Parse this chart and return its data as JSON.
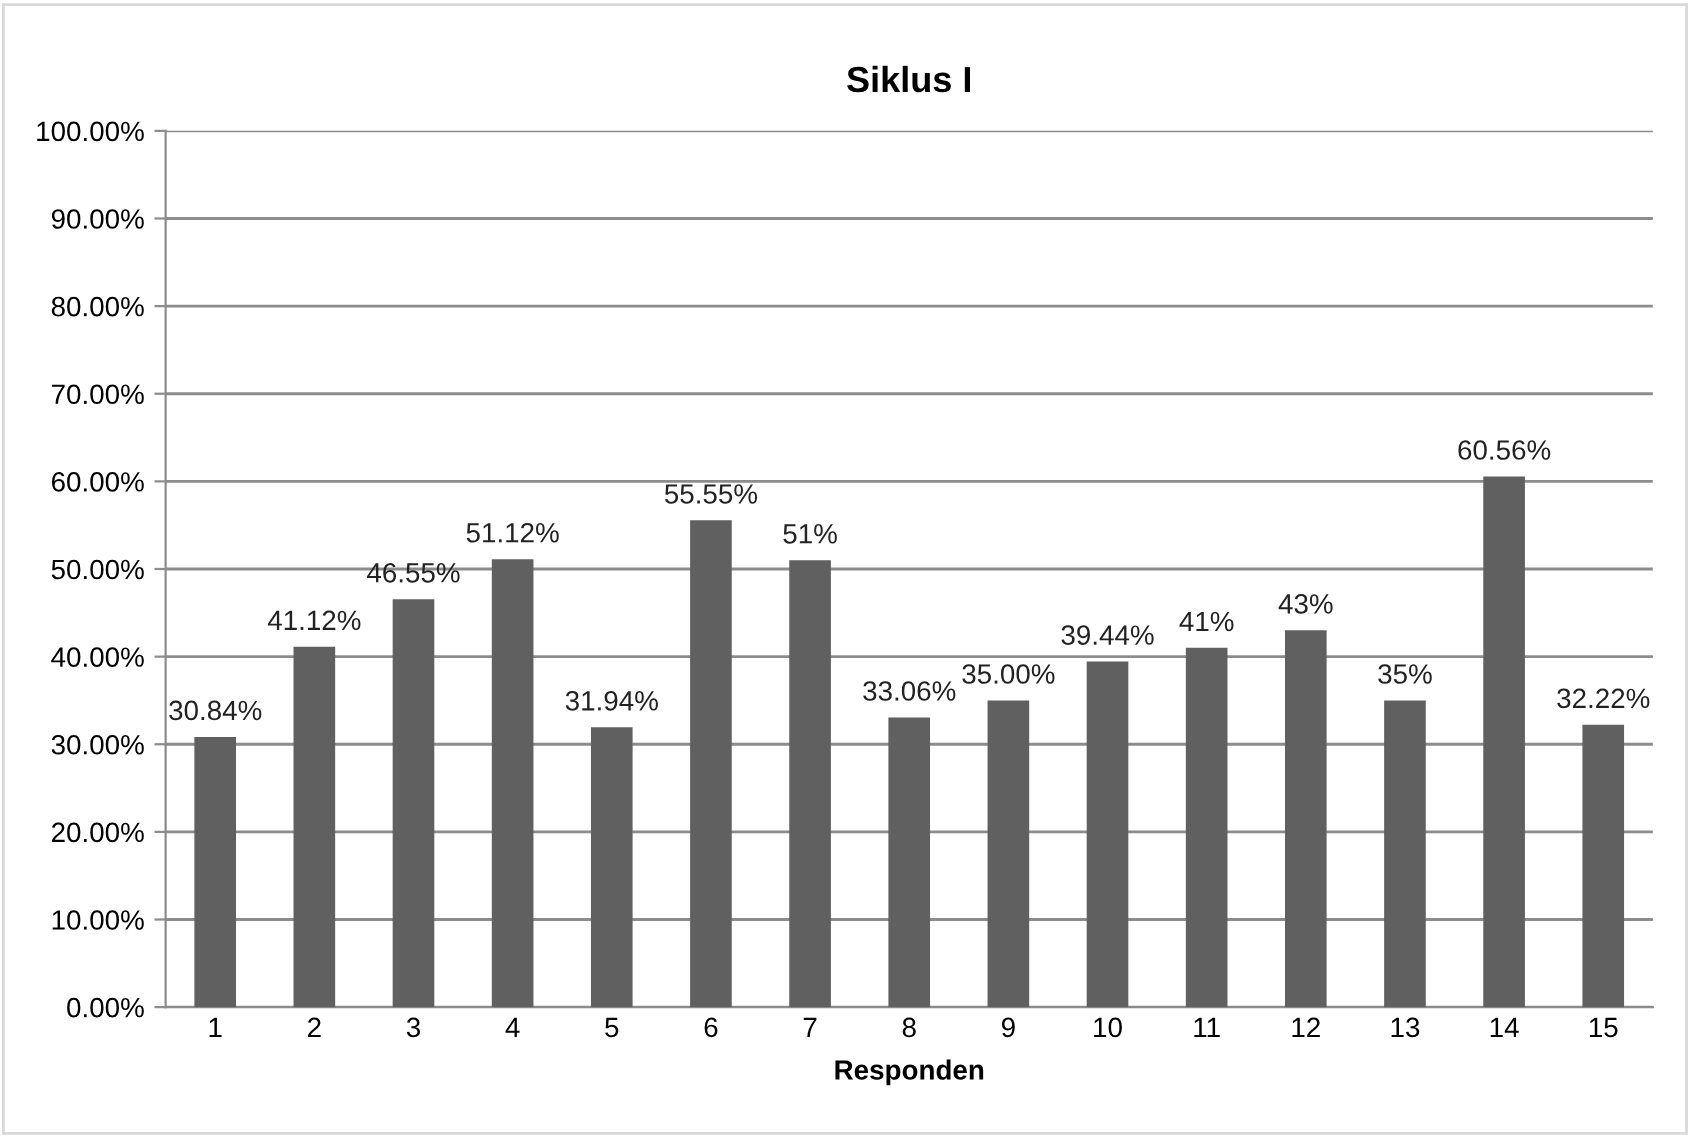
{
  "chart_data": {
    "type": "bar",
    "title": "Siklus I",
    "xlabel": "Responden",
    "categories": [
      "1",
      "2",
      "3",
      "4",
      "5",
      "6",
      "7",
      "8",
      "9",
      "10",
      "11",
      "12",
      "13",
      "14",
      "15"
    ],
    "values": [
      30.84,
      41.12,
      46.55,
      51.12,
      31.94,
      55.55,
      51,
      33.06,
      35.0,
      39.44,
      41,
      43,
      35,
      60.56,
      32.22
    ],
    "value_labels": [
      "30.84%",
      "41.12%",
      "46.55%",
      "51.12%",
      "31.94%",
      "55.55%",
      "51%",
      "33.06%",
      "35.00%",
      "39.44%",
      "41%",
      "43%",
      "35%",
      "60.56%",
      "32.22%"
    ],
    "color": "#606060",
    "ylim": [
      0,
      100
    ],
    "yticks": [
      {
        "value": 0,
        "label": "0.00%"
      },
      {
        "value": 10,
        "label": "10.00%"
      },
      {
        "value": 20,
        "label": "20.00%"
      },
      {
        "value": 30,
        "label": "30.00%"
      },
      {
        "value": 40,
        "label": "40.00%"
      },
      {
        "value": 50,
        "label": "50.00%"
      },
      {
        "value": 60,
        "label": "60.00%"
      },
      {
        "value": 70,
        "label": "70.00%"
      },
      {
        "value": 80,
        "label": "80.00%"
      },
      {
        "value": 90,
        "label": "90.00%"
      },
      {
        "value": 100,
        "label": "100.00%"
      }
    ],
    "grid": "y",
    "legend": false
  }
}
